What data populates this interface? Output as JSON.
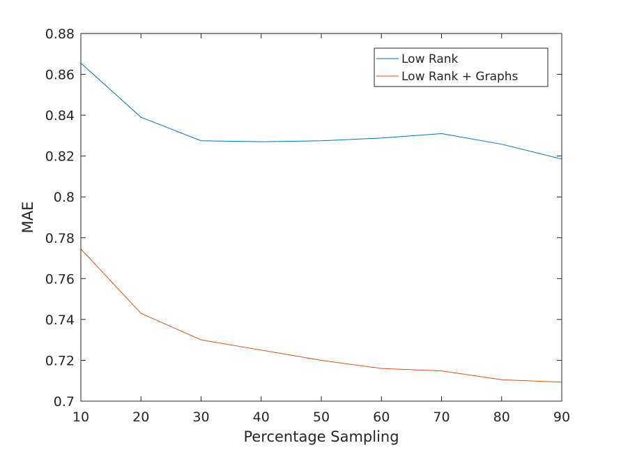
{
  "chart_data": {
    "type": "line",
    "title": "",
    "xlabel": "Percentage Sampling",
    "ylabel": "MAE",
    "x": [
      10,
      20,
      30,
      40,
      50,
      60,
      70,
      80,
      90
    ],
    "xlim": [
      10,
      90
    ],
    "ylim": [
      0.7,
      0.88
    ],
    "xticks": [
      10,
      20,
      30,
      40,
      50,
      60,
      70,
      80,
      90
    ],
    "yticks": [
      0.7,
      0.72,
      0.74,
      0.76,
      0.78,
      0.8,
      0.82,
      0.84,
      0.86,
      0.88
    ],
    "ytick_labels": [
      "0.7",
      "0.72",
      "0.74",
      "0.76",
      "0.78",
      "0.8",
      "0.82",
      "0.84",
      "0.86",
      "0.88"
    ],
    "grid": false,
    "legend_position": "top-right",
    "series": [
      {
        "name": "Low Rank",
        "color": "#0072BD",
        "values": [
          0.8655,
          0.839,
          0.8275,
          0.827,
          0.8275,
          0.8288,
          0.831,
          0.8258,
          0.8185
        ]
      },
      {
        "name": "Low Rank + Graphs",
        "color": "#D95319",
        "values": [
          0.7745,
          0.743,
          0.73,
          0.725,
          0.72,
          0.716,
          0.7148,
          0.7105,
          0.7093
        ]
      }
    ]
  }
}
